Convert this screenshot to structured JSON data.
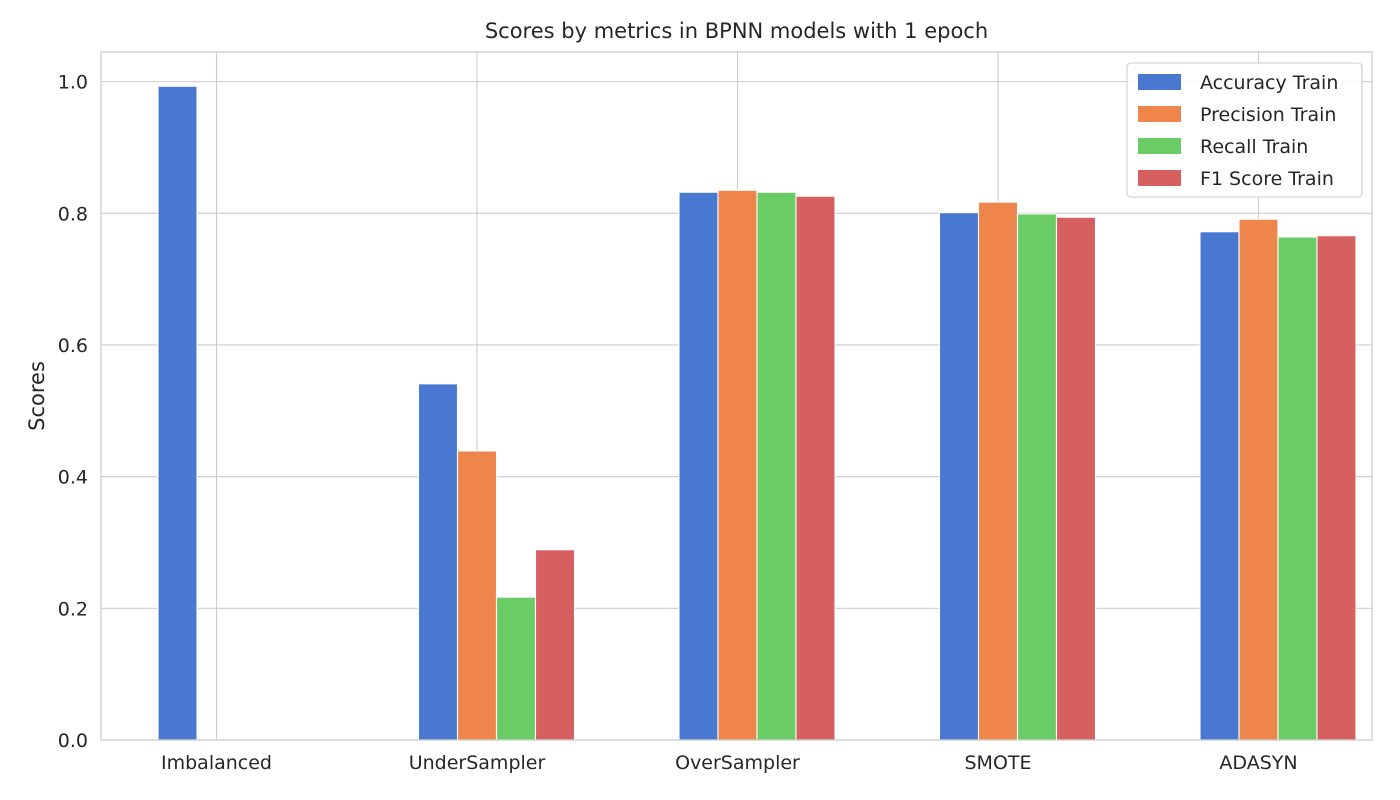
{
  "chart_data": {
    "type": "bar",
    "title": "Scores by metrics in BPNN models with 1 epoch",
    "xlabel": "",
    "ylabel": "Scores",
    "ylim": [
      0,
      1.045
    ],
    "yticks": [
      "0.0",
      "0.2",
      "0.4",
      "0.6",
      "0.8",
      "1.0"
    ],
    "grid": true,
    "legend_position": "top-right",
    "categories": [
      "Imbalanced",
      "UnderSampler",
      "OverSampler",
      "SMOTE",
      "ADASYN"
    ],
    "series": [
      {
        "name": "Accuracy Train",
        "color": "#4878d0",
        "values": [
          0.993,
          0.541,
          0.832,
          0.801,
          0.772
        ]
      },
      {
        "name": "Precision Train",
        "color": "#ee854a",
        "values": [
          0.0,
          0.439,
          0.835,
          0.817,
          0.791
        ]
      },
      {
        "name": "Recall Train",
        "color": "#6acc64",
        "values": [
          0.0,
          0.217,
          0.832,
          0.799,
          0.764
        ]
      },
      {
        "name": "F1 Score Train",
        "color": "#d65f5f",
        "values": [
          0.0,
          0.289,
          0.826,
          0.794,
          0.766
        ]
      }
    ]
  }
}
